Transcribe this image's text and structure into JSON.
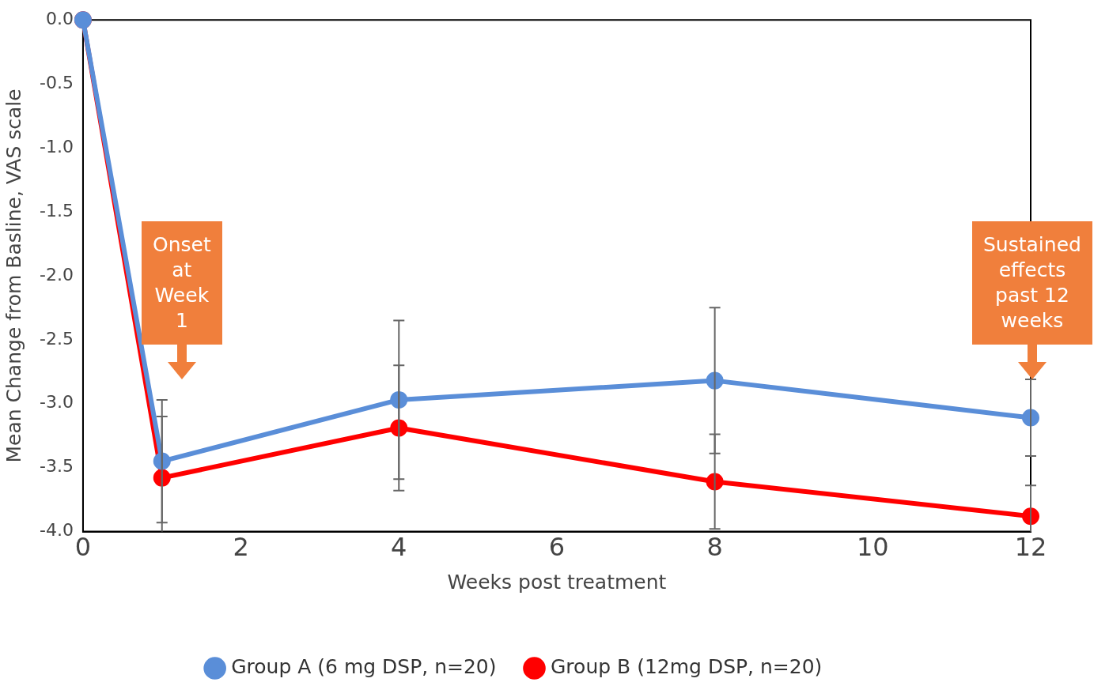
{
  "chart_data": {
    "type": "line",
    "xlabel": "Weeks post treatment",
    "ylabel": "Mean Change from Basline, VAS scale",
    "x": [
      0,
      1,
      4,
      8,
      12
    ],
    "series": [
      {
        "name": "Group A (6 mg DSP, n=20)",
        "color": "#5a8ed8",
        "values": [
          0,
          -3.45,
          -2.97,
          -2.82,
          -3.11
        ],
        "errors": [
          null,
          0.48,
          0.62,
          0.57,
          0.3
        ]
      },
      {
        "name": "Group B (12mg DSP, n=20)",
        "color": "#ff0000",
        "values": [
          0,
          -3.58,
          -3.19,
          -3.61,
          -3.88
        ],
        "errors": [
          null,
          [
            -4.0,
            -3.1
          ],
          0.49,
          0.37,
          [
            -4.0,
            -3.64
          ]
        ]
      }
    ],
    "xlim": [
      0,
      12
    ],
    "xticks": [
      0,
      2,
      4,
      6,
      8,
      10,
      12
    ],
    "ylim": [
      -4.0,
      0.0
    ],
    "yticks": [
      {
        "value": -4,
        "label": "-4.0"
      },
      {
        "value": -3.5,
        "label": "-3.5"
      },
      {
        "value": -3,
        "label": "-3.0"
      },
      {
        "value": -2.5,
        "label": "-2.5"
      },
      {
        "value": -2,
        "label": "-2.0"
      },
      {
        "value": -1.5,
        "label": "-1.5"
      },
      {
        "value": -1,
        "label": "-1.0"
      },
      {
        "value": -0.5,
        "label": "-0.5"
      },
      {
        "value": 0,
        "label": "0.0"
      }
    ],
    "annotations": [
      "Onset at Week 1",
      "Sustained effects past 12 weeks"
    ],
    "grid": false,
    "legend": "bottom",
    "marker": "circle",
    "line_style": "solid"
  }
}
